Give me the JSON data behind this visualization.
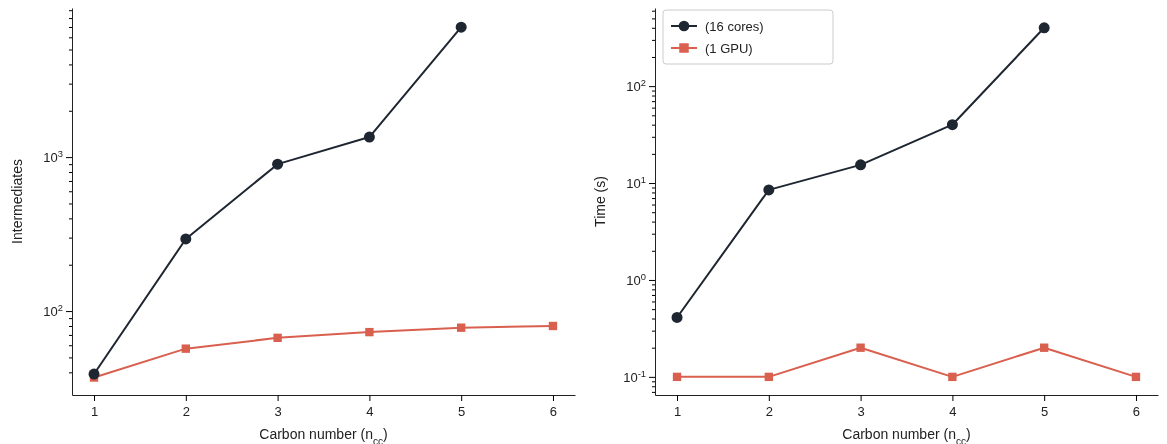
{
  "chart_data": [
    {
      "type": "line",
      "xlabel": "Carbon number (n$_{cc}$)",
      "ylabel": "Intermediates",
      "log": "y",
      "xlim": [
        0.76,
        6.24
      ],
      "xticks": [
        1,
        2,
        3,
        4,
        5,
        6
      ],
      "ylim": [
        28.5,
        9300
      ],
      "yticks": [
        {
          "value": 40,
          "label": null
        },
        {
          "value": 50,
          "label": null
        },
        {
          "value": 60,
          "label": null
        },
        {
          "value": 70,
          "label": null
        },
        {
          "value": 80,
          "label": null
        },
        {
          "value": 90,
          "label": null
        },
        {
          "value": 100,
          "label": "10$^{2}$"
        },
        {
          "value": 200,
          "label": null
        },
        {
          "value": 300,
          "label": null
        },
        {
          "value": 400,
          "label": null
        },
        {
          "value": 500,
          "label": null
        },
        {
          "value": 600,
          "label": null
        },
        {
          "value": 700,
          "label": null
        },
        {
          "value": 800,
          "label": null
        },
        {
          "value": 900,
          "label": null
        },
        {
          "value": 1000,
          "label": "10$^{3}$"
        },
        {
          "value": 2000,
          "label": null
        },
        {
          "value": 3000,
          "label": null
        },
        {
          "value": 4000,
          "label": null
        },
        {
          "value": 5000,
          "label": null
        },
        {
          "value": 6000,
          "label": null
        },
        {
          "value": 7000,
          "label": null
        },
        {
          "value": 8000,
          "label": null
        },
        {
          "value": 9000,
          "label": null
        }
      ],
      "series": [
        {
          "color": "#1e2631",
          "marker": "circle",
          "x": [
            1,
            2,
            3,
            4,
            5
          ],
          "values": [
            39,
            294,
            900,
            1350,
            6980
          ]
        },
        {
          "color": "#d95f4e",
          "marker": "square",
          "x": [
            1,
            2,
            3,
            4,
            5,
            6
          ],
          "values": [
            37,
            57,
            67,
            73,
            78,
            80
          ]
        }
      ]
    },
    {
      "type": "line",
      "xlabel": "Carbon number (n$_{cc}$)",
      "ylabel": "Time (s)",
      "log": "y",
      "xlim": [
        0.76,
        6.24
      ],
      "xticks": [
        1,
        2,
        3,
        4,
        5,
        6
      ],
      "ylim": [
        0.065,
        640
      ],
      "legend": "top left",
      "yticks": [
        {
          "value": 0.07,
          "label": null
        },
        {
          "value": 0.08,
          "label": null
        },
        {
          "value": 0.09,
          "label": null
        },
        {
          "value": 0.1,
          "label": "10$^{-1}$"
        },
        {
          "value": 0.2,
          "label": null
        },
        {
          "value": 0.3,
          "label": null
        },
        {
          "value": 0.4,
          "label": null
        },
        {
          "value": 0.5,
          "label": null
        },
        {
          "value": 0.6,
          "label": null
        },
        {
          "value": 0.7,
          "label": null
        },
        {
          "value": 0.8,
          "label": null
        },
        {
          "value": 0.9,
          "label": null
        },
        {
          "value": 1,
          "label": "10$^{0}$"
        },
        {
          "value": 2,
          "label": null
        },
        {
          "value": 3,
          "label": null
        },
        {
          "value": 4,
          "label": null
        },
        {
          "value": 5,
          "label": null
        },
        {
          "value": 6,
          "label": null
        },
        {
          "value": 7,
          "label": null
        },
        {
          "value": 8,
          "label": null
        },
        {
          "value": 9,
          "label": null
        },
        {
          "value": 10,
          "label": "10$^{1}$"
        },
        {
          "value": 20,
          "label": null
        },
        {
          "value": 30,
          "label": null
        },
        {
          "value": 40,
          "label": null
        },
        {
          "value": 50,
          "label": null
        },
        {
          "value": 60,
          "label": null
        },
        {
          "value": 70,
          "label": null
        },
        {
          "value": 80,
          "label": null
        },
        {
          "value": 90,
          "label": null
        },
        {
          "value": 100,
          "label": "10$^{2}$"
        },
        {
          "value": 200,
          "label": null
        },
        {
          "value": 300,
          "label": null
        },
        {
          "value": 400,
          "label": null
        },
        {
          "value": 500,
          "label": null
        },
        {
          "value": 600,
          "label": null
        }
      ],
      "series": [
        {
          "name": "(16 cores)",
          "color": "#1e2631",
          "marker": "circle",
          "x": [
            1,
            2,
            3,
            4,
            5
          ],
          "values": [
            0.41,
            8.5,
            15.4,
            40,
            400
          ]
        },
        {
          "name": "(1 GPU)",
          "color": "#d95f4e",
          "marker": "square",
          "x": [
            1,
            2,
            3,
            4,
            5,
            6
          ],
          "values": [
            0.1,
            0.1,
            0.2,
            0.1,
            0.2,
            0.1
          ]
        }
      ]
    }
  ]
}
